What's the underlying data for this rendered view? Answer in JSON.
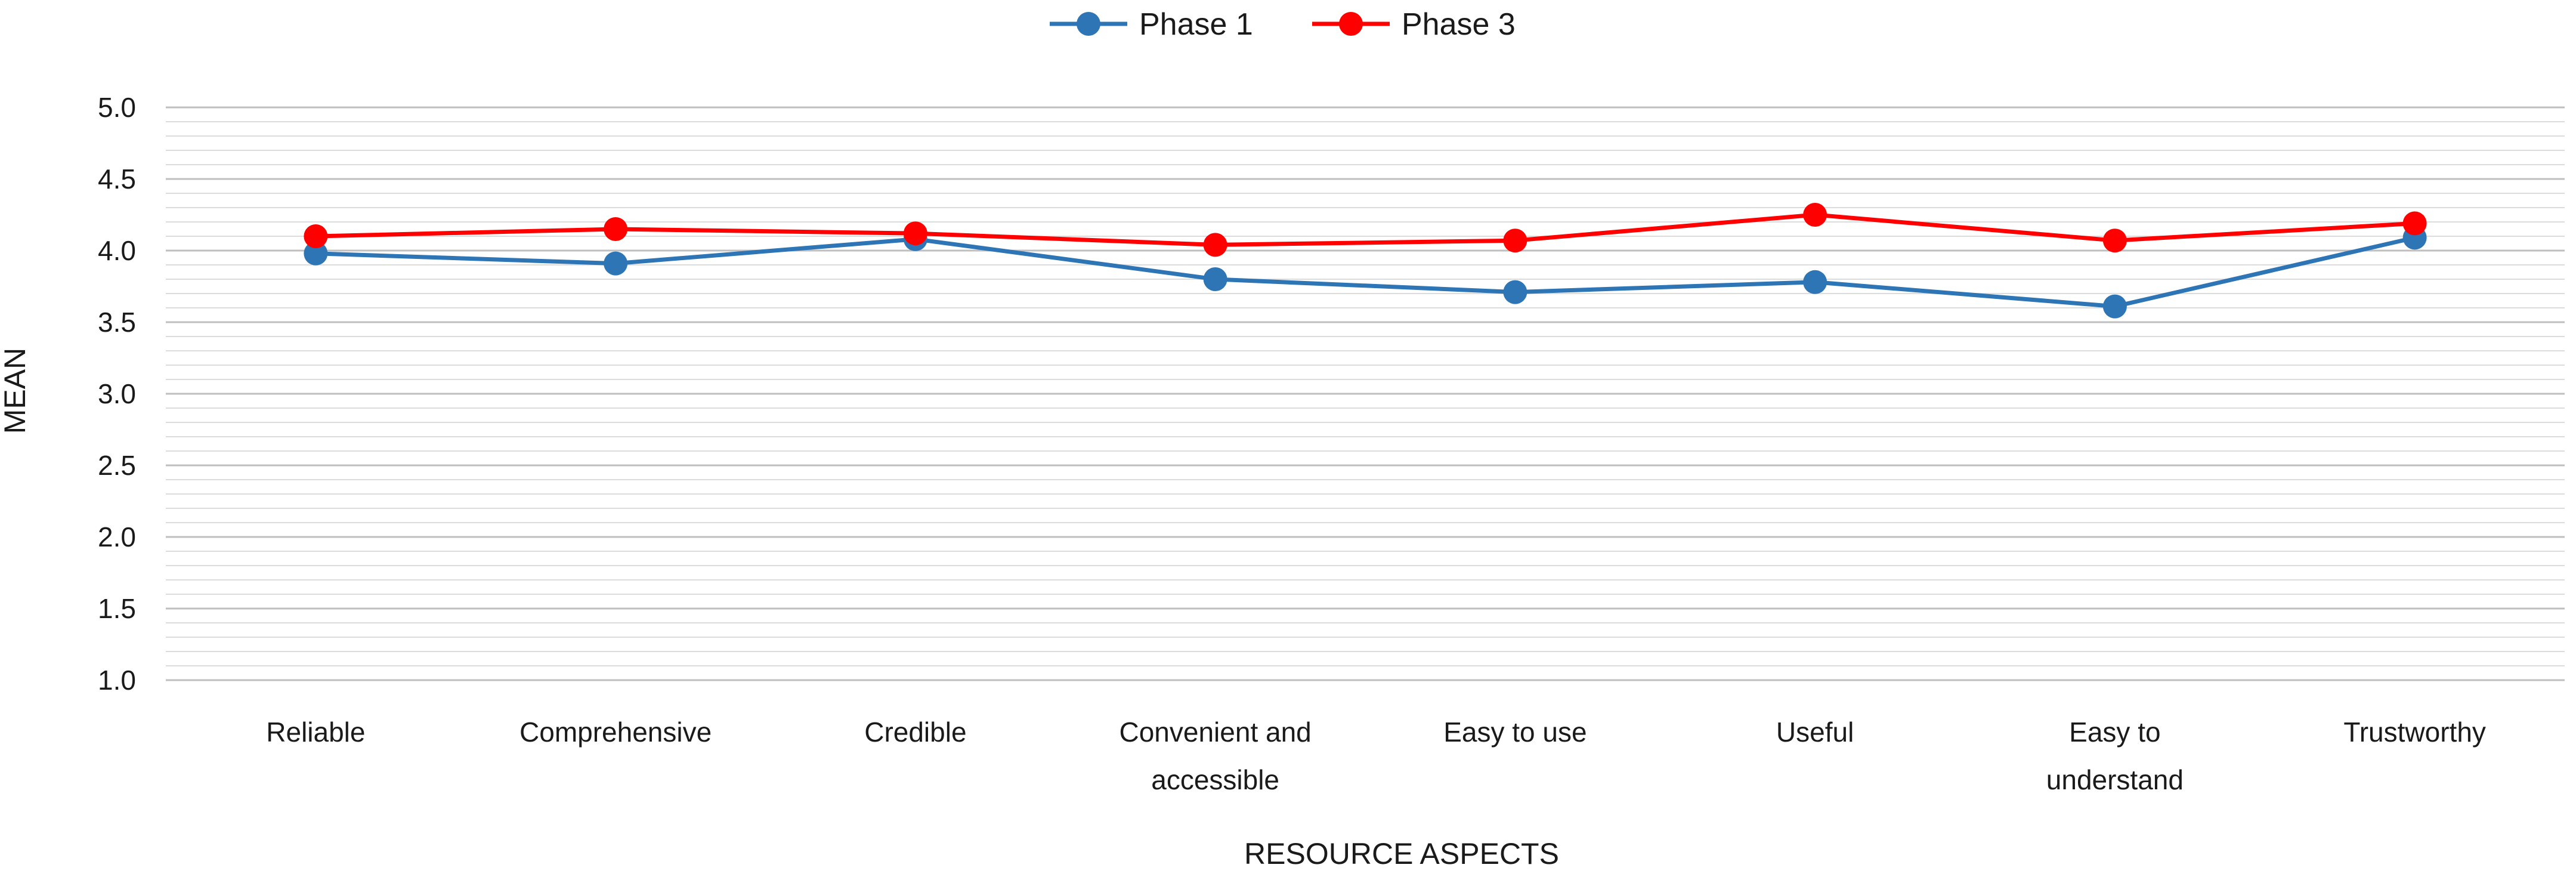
{
  "chart_data": {
    "type": "line",
    "title": "",
    "xlabel": "RESOURCE ASPECTS",
    "ylabel": "MEAN",
    "ylim": [
      1.0,
      5.0
    ],
    "yticks": [
      "1.0",
      "1.5",
      "2.0",
      "2.5",
      "3.0",
      "3.5",
      "4.0",
      "4.5",
      "5.0"
    ],
    "minor_grid_step": 0.1,
    "grid": true,
    "legend_position": "top-center",
    "categories": [
      [
        "Reliable"
      ],
      [
        "Comprehensive"
      ],
      [
        "Credible"
      ],
      [
        "Convenient and",
        "accessible"
      ],
      [
        "Easy to use"
      ],
      [
        "Useful"
      ],
      [
        "Easy to",
        "understand"
      ],
      [
        "Trustworthy"
      ]
    ],
    "series": [
      {
        "name": "Phase 1",
        "color": "#2e75b6",
        "values": [
          3.98,
          3.91,
          4.08,
          3.8,
          3.71,
          3.78,
          3.61,
          4.09
        ]
      },
      {
        "name": "Phase 3",
        "color": "#ff0000",
        "values": [
          4.1,
          4.15,
          4.12,
          4.04,
          4.07,
          4.25,
          4.07,
          4.19
        ]
      }
    ]
  }
}
